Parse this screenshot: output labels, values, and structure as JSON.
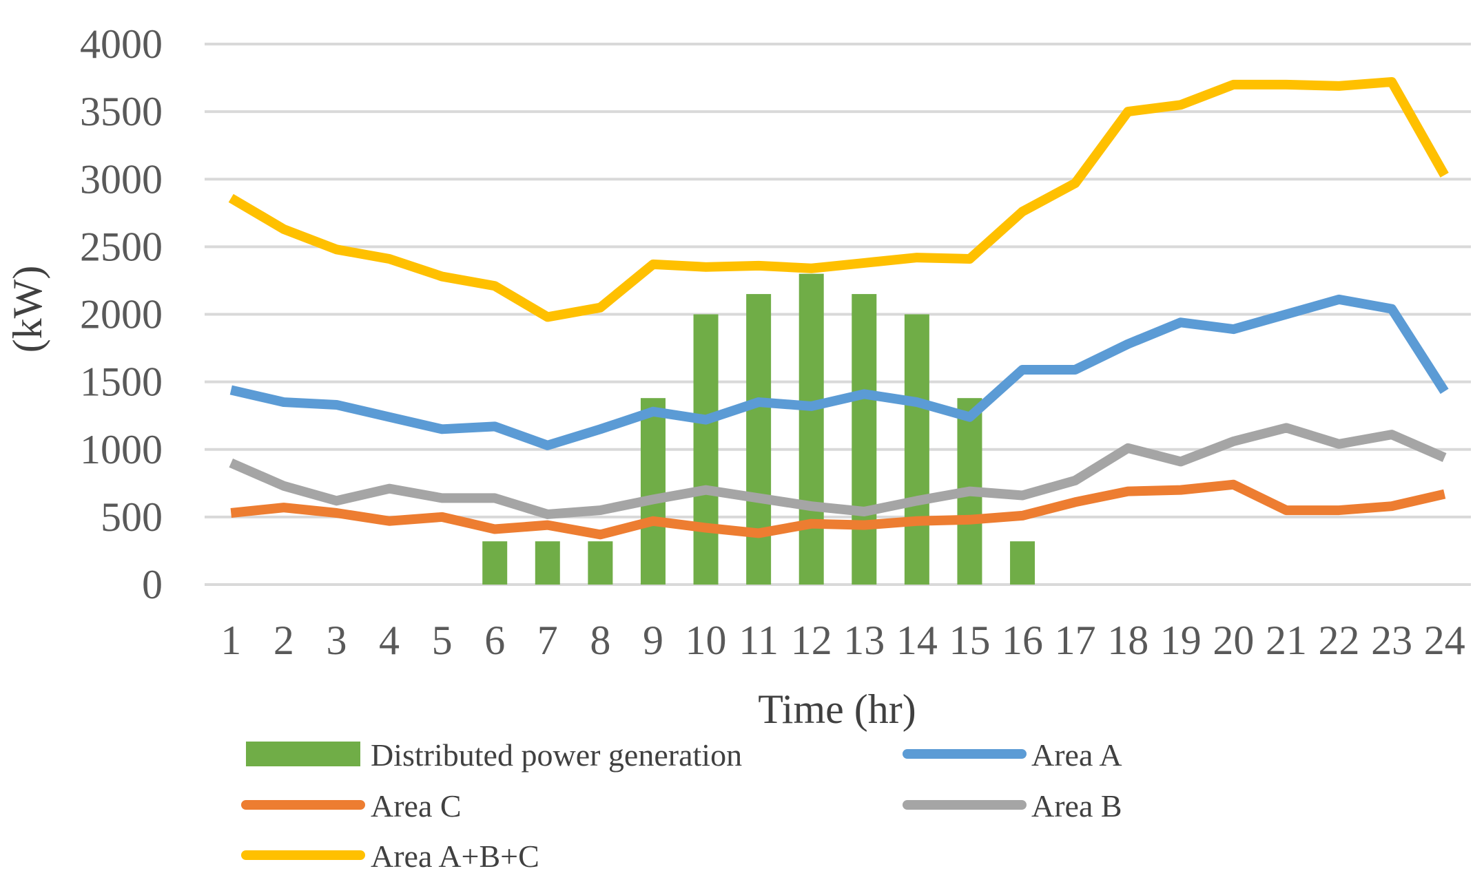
{
  "chart_data": {
    "type": "bar+line",
    "xlabel": "Time (hr)",
    "ylabel": "(kW)",
    "ylim": [
      0,
      4000
    ],
    "yticks": [
      0,
      500,
      1000,
      1500,
      2000,
      2500,
      3000,
      3500,
      4000
    ],
    "categories": [
      "1",
      "2",
      "3",
      "4",
      "5",
      "6",
      "7",
      "8",
      "9",
      "10",
      "11",
      "12",
      "13",
      "14",
      "15",
      "16",
      "17",
      "18",
      "19",
      "20",
      "21",
      "22",
      "23",
      "24"
    ],
    "grid": true,
    "legend_position": "bottom",
    "series": [
      {
        "name": "Distributed power generation",
        "kind": "bar",
        "color": "#70AD47",
        "values": [
          0,
          0,
          0,
          0,
          0,
          320,
          320,
          320,
          1380,
          2000,
          2150,
          2300,
          2150,
          2000,
          1380,
          320,
          0,
          0,
          0,
          0,
          0,
          0,
          0,
          0
        ]
      },
      {
        "name": "Area A",
        "kind": "line",
        "color": "#5B9BD5",
        "values": [
          1440,
          1350,
          1330,
          1240,
          1150,
          1170,
          1030,
          1150,
          1280,
          1220,
          1350,
          1320,
          1410,
          1350,
          1240,
          1590,
          1590,
          1780,
          1940,
          1890,
          2000,
          2110,
          2040,
          1430
        ]
      },
      {
        "name": "Area C",
        "kind": "line",
        "color": "#ED7D31",
        "values": [
          530,
          570,
          530,
          470,
          500,
          410,
          440,
          370,
          470,
          420,
          380,
          450,
          440,
          470,
          480,
          510,
          610,
          690,
          700,
          740,
          550,
          550,
          580,
          670
        ]
      },
      {
        "name": "Area B",
        "kind": "line",
        "color": "#A5A5A5",
        "values": [
          900,
          730,
          620,
          710,
          640,
          640,
          520,
          550,
          630,
          700,
          640,
          580,
          540,
          620,
          690,
          660,
          770,
          1010,
          910,
          1060,
          1160,
          1040,
          1110,
          940
        ]
      },
      {
        "name": "Area A+B+C",
        "kind": "line",
        "color": "#FFC000",
        "values": [
          2860,
          2630,
          2480,
          2410,
          2280,
          2210,
          1980,
          2050,
          2370,
          2350,
          2360,
          2340,
          2380,
          2420,
          2410,
          2760,
          2970,
          3500,
          3550,
          3700,
          3700,
          3690,
          3720,
          3030
        ]
      }
    ]
  }
}
